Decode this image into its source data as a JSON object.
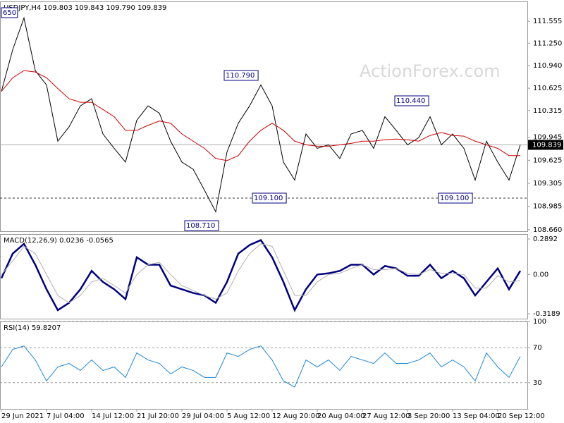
{
  "watermark": "ActionForex.com",
  "chart_data": [
    {
      "type": "line",
      "title": "USDJPY,H4  109.803 109.843 109.790 109.839",
      "categories": [
        "29 Jun 2021",
        null,
        null,
        null,
        "7 Jul 04:00",
        null,
        null,
        null,
        "14 Jul 12:00",
        null,
        null,
        null,
        "21 Jul 20:00",
        null,
        null,
        null,
        "29 Jul 04:00",
        null,
        null,
        null,
        "5 Aug 12:00",
        null,
        null,
        null,
        "12 Aug 20:00",
        null,
        null,
        null,
        "20 Aug 04:00",
        null,
        null,
        null,
        "27 Aug 12:00",
        null,
        null,
        null,
        "3 Sep 20:00",
        null,
        null,
        null,
        "13 Sep 04:00",
        null,
        null,
        null,
        "20 Sep 12:00",
        null,
        null
      ],
      "series": [
        {
          "name": "USDJPY",
          "color": "#000000",
          "values": [
            110.58,
            111.16,
            111.6,
            110.87,
            110.67,
            109.89,
            110.09,
            110.38,
            110.48,
            109.99,
            109.79,
            109.6,
            110.18,
            110.38,
            110.28,
            109.89,
            109.6,
            109.5,
            109.21,
            108.91,
            109.74,
            110.14,
            110.38,
            110.67,
            110.38,
            109.6,
            109.35,
            109.99,
            109.79,
            109.84,
            109.65,
            109.99,
            110.04,
            109.79,
            110.23,
            110.04,
            109.84,
            109.94,
            110.23,
            109.84,
            109.99,
            109.79,
            109.35,
            109.89,
            109.6,
            109.35,
            109.84
          ]
        },
        {
          "name": "MA",
          "color": "#cc0000",
          "values": [
            110.58,
            110.77,
            110.87,
            110.85,
            110.77,
            110.62,
            110.48,
            110.43,
            110.43,
            110.33,
            110.23,
            110.04,
            110.04,
            110.11,
            110.17,
            110.14,
            109.99,
            109.89,
            109.79,
            109.65,
            109.62,
            109.69,
            109.89,
            110.04,
            110.14,
            110.04,
            109.89,
            109.84,
            109.82,
            109.82,
            109.84,
            109.86,
            109.89,
            109.89,
            109.91,
            109.92,
            109.91,
            109.89,
            109.97,
            110.01,
            109.97,
            109.96,
            109.89,
            109.84,
            109.79,
            109.69,
            109.69
          ]
        }
      ],
      "last_price": {
        "value": 109.839,
        "label": "109.839"
      },
      "support": 109.1,
      "annotations": [
        "650",
        "110.790",
        "108.710",
        "109.100",
        "110.440",
        "109.100"
      ],
      "ylim": [
        108.64,
        111.83
      ],
      "yticks": [
        {
          "value": 111.555,
          "label": "111.555"
        },
        {
          "value": 111.25,
          "label": "111.250"
        },
        {
          "value": 110.94,
          "label": "110.940"
        },
        {
          "value": 110.625,
          "label": "110.625"
        },
        {
          "value": 110.315,
          "label": "110.315"
        },
        {
          "value": 109.945,
          "label": "109.945"
        },
        {
          "value": 109.625,
          "label": "109.625"
        },
        {
          "value": 109.305,
          "label": "109.305"
        },
        {
          "value": 108.985,
          "label": "108.985"
        },
        {
          "value": 108.66,
          "label": "108.660"
        }
      ]
    },
    {
      "type": "line",
      "title": "MACD(12,26,9) 0.0236 -0.0565",
      "series": [
        {
          "name": "MACD",
          "color": "#000080",
          "values": [
            -0.03,
            0.17,
            0.25,
            0.08,
            -0.12,
            -0.29,
            -0.23,
            -0.12,
            0.03,
            -0.06,
            -0.12,
            -0.2,
            0.14,
            0.08,
            0.08,
            -0.09,
            -0.12,
            -0.15,
            -0.17,
            -0.23,
            -0.06,
            0.17,
            0.24,
            0.28,
            0.14,
            -0.06,
            -0.29,
            -0.12,
            0.0,
            0.01,
            0.03,
            0.08,
            0.08,
            0.0,
            0.07,
            0.05,
            -0.01,
            -0.01,
            0.08,
            -0.03,
            0.03,
            -0.03,
            -0.17,
            -0.06,
            0.05,
            -0.12,
            0.03
          ]
        },
        {
          "name": "Signal",
          "color": "#b0b0b0",
          "values": [
            0.0,
            0.11,
            0.23,
            0.17,
            0.0,
            -0.17,
            -0.23,
            -0.17,
            -0.06,
            -0.03,
            -0.09,
            -0.15,
            0.0,
            0.08,
            0.1,
            0.0,
            -0.09,
            -0.13,
            -0.17,
            -0.2,
            -0.15,
            0.03,
            0.17,
            0.25,
            0.23,
            0.03,
            -0.17,
            -0.17,
            -0.06,
            0.0,
            0.01,
            0.05,
            0.08,
            0.04,
            0.04,
            0.05,
            0.01,
            0.0,
            0.04,
            0.01,
            0.01,
            0.0,
            -0.11,
            -0.11,
            -0.01,
            -0.06,
            -0.05
          ]
        }
      ],
      "ylim": [
        -0.359,
        0.3294
      ],
      "yticks": [
        0.2892,
        {
          "value": 0,
          "label": "0.00"
        },
        -0.3189
      ]
    },
    {
      "type": "line",
      "title": "RSI(14) 59.8207",
      "series": [
        {
          "name": "RSI",
          "color": "#1e88d8",
          "values": [
            48,
            68,
            72,
            56,
            32,
            48,
            52,
            44,
            56,
            44,
            48,
            36,
            64,
            56,
            52,
            40,
            48,
            44,
            36,
            36,
            64,
            60,
            68,
            72,
            56,
            32,
            25,
            56,
            48,
            56,
            44,
            60,
            56,
            52,
            64,
            52,
            52,
            56,
            64,
            48,
            56,
            48,
            32,
            64,
            48,
            36,
            60
          ]
        }
      ],
      "ylim": [
        0,
        100
      ],
      "yticks": [
        100,
        70,
        30
      ],
      "grid": "dashed"
    }
  ]
}
